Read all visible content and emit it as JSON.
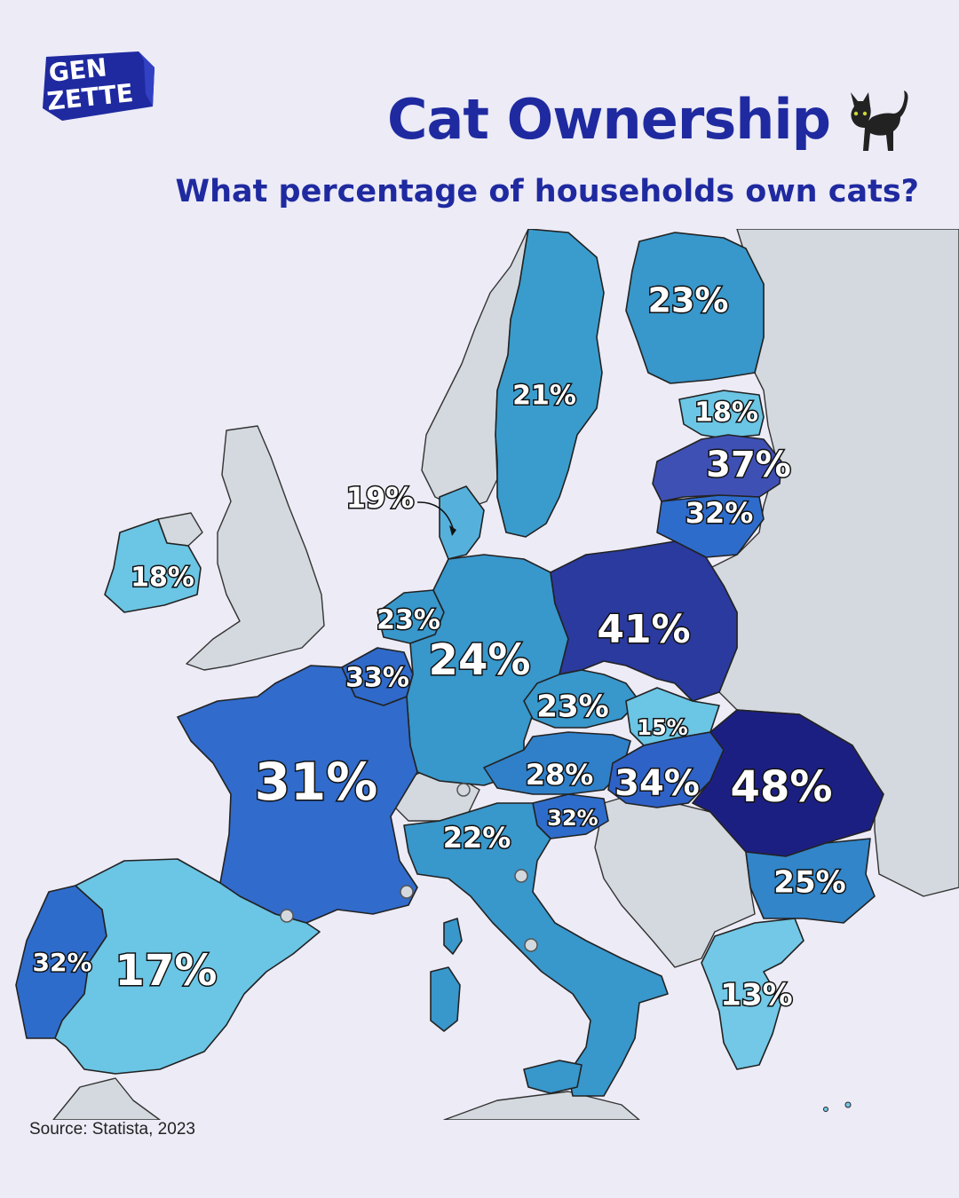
{
  "brand": {
    "line1": "GEN",
    "line2": "ZETTE",
    "color": "#1f2aa0"
  },
  "title": "Cat Ownership",
  "title_icon": "black-cat-icon",
  "subtitle": "What percentage of households own cats?",
  "source": "Source: Statista, 2023",
  "colors": {
    "background": "#ecebf6",
    "non_data_land": "#d3d9de",
    "title": "#1f2aa0"
  },
  "countries": [
    {
      "id": "finland",
      "label": "23%",
      "value": 23,
      "color": "#3897cb"
    },
    {
      "id": "sweden",
      "label": "21%",
      "value": 21,
      "color": "#3a9ccc"
    },
    {
      "id": "estonia",
      "label": "18%",
      "value": 18,
      "color": "#6bc5e4"
    },
    {
      "id": "latvia",
      "label": "37%",
      "value": 37,
      "color": "#3f50b5"
    },
    {
      "id": "lithuania",
      "label": "32%",
      "value": 32,
      "color": "#2e6ccc"
    },
    {
      "id": "denmark",
      "label": "19%",
      "value": 19,
      "color": "#55b1dc"
    },
    {
      "id": "ireland",
      "label": "18%",
      "value": 18,
      "color": "#6bc5e4"
    },
    {
      "id": "netherlands",
      "label": "23%",
      "value": 23,
      "color": "#3897cb"
    },
    {
      "id": "belgium",
      "label": "33%",
      "value": 33,
      "color": "#2f69c9"
    },
    {
      "id": "germany",
      "label": "24%",
      "value": 24,
      "color": "#3897cb"
    },
    {
      "id": "poland",
      "label": "41%",
      "value": 41,
      "color": "#2a3a9e"
    },
    {
      "id": "czechia",
      "label": "23%",
      "value": 23,
      "color": "#3897cb"
    },
    {
      "id": "slovakia",
      "label": "15%",
      "value": 15,
      "color": "#6bc5e4"
    },
    {
      "id": "austria",
      "label": "28%",
      "value": 28,
      "color": "#2f80c9"
    },
    {
      "id": "hungary",
      "label": "34%",
      "value": 34,
      "color": "#2f62c6"
    },
    {
      "id": "slovenia",
      "label": "32%",
      "value": 32,
      "color": "#2e6ccc"
    },
    {
      "id": "romania",
      "label": "48%",
      "value": 48,
      "color": "#1c1f82"
    },
    {
      "id": "france",
      "label": "31%",
      "value": 31,
      "color": "#316bcb"
    },
    {
      "id": "italy",
      "label": "22%",
      "value": 22,
      "color": "#3897cb"
    },
    {
      "id": "bulgaria",
      "label": "25%",
      "value": 25,
      "color": "#3185c8"
    },
    {
      "id": "portugal",
      "label": "32%",
      "value": 32,
      "color": "#2e6ccc"
    },
    {
      "id": "spain",
      "label": "17%",
      "value": 17,
      "color": "#6bc5e4"
    },
    {
      "id": "greece",
      "label": "13%",
      "value": 13,
      "color": "#72c8e6"
    }
  ]
}
